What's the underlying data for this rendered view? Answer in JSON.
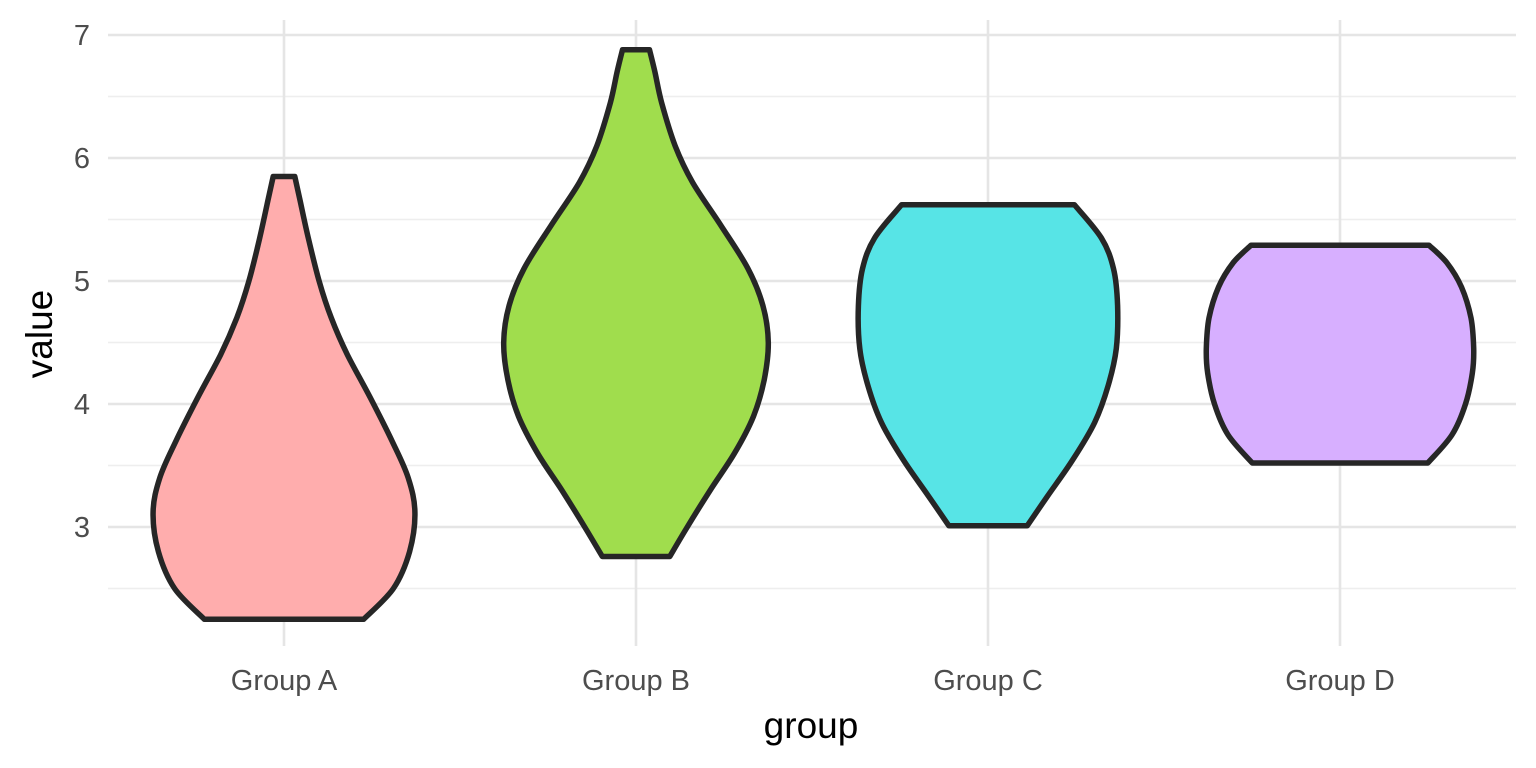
{
  "chart_data": {
    "type": "violin",
    "xlabel": "group",
    "ylabel": "value",
    "categories": [
      "Group A",
      "Group B",
      "Group C",
      "Group D"
    ],
    "yticks": [
      3,
      4,
      5,
      6,
      7
    ],
    "ylim": [
      2.05,
      7.15
    ],
    "grid": true,
    "legend": "none",
    "series": [
      {
        "category": "Group A",
        "color": "#ffadad",
        "min": 2.25,
        "max": 5.85,
        "density": [
          [
            2.25,
            0.59
          ],
          [
            2.5,
            0.81
          ],
          [
            2.8,
            0.93
          ],
          [
            3.12,
            0.97
          ],
          [
            3.4,
            0.92
          ],
          [
            3.7,
            0.8
          ],
          [
            4.05,
            0.64
          ],
          [
            4.4,
            0.47
          ],
          [
            4.7,
            0.35
          ],
          [
            5.0,
            0.26
          ],
          [
            5.35,
            0.18
          ],
          [
            5.65,
            0.12
          ],
          [
            5.85,
            0.08
          ]
        ]
      },
      {
        "category": "Group B",
        "color": "#a0dd4d",
        "min": 2.76,
        "max": 6.88,
        "density": [
          [
            2.76,
            0.25
          ],
          [
            3.0,
            0.38
          ],
          [
            3.3,
            0.55
          ],
          [
            3.6,
            0.73
          ],
          [
            3.9,
            0.87
          ],
          [
            4.2,
            0.95
          ],
          [
            4.5,
            0.98
          ],
          [
            4.8,
            0.94
          ],
          [
            5.1,
            0.83
          ],
          [
            5.45,
            0.63
          ],
          [
            5.8,
            0.42
          ],
          [
            6.1,
            0.29
          ],
          [
            6.45,
            0.19
          ],
          [
            6.7,
            0.14
          ],
          [
            6.88,
            0.1
          ]
        ]
      },
      {
        "category": "Group C",
        "color": "#57e4e6",
        "min": 3.01,
        "max": 5.62,
        "density": [
          [
            3.01,
            0.29
          ],
          [
            3.25,
            0.44
          ],
          [
            3.55,
            0.63
          ],
          [
            3.85,
            0.79
          ],
          [
            4.15,
            0.89
          ],
          [
            4.45,
            0.95
          ],
          [
            4.8,
            0.96
          ],
          [
            5.1,
            0.93
          ],
          [
            5.35,
            0.84
          ],
          [
            5.62,
            0.64
          ]
        ]
      },
      {
        "category": "Group D",
        "color": "#d7afff",
        "min": 3.52,
        "max": 5.29,
        "density": [
          [
            3.52,
            0.65
          ],
          [
            3.75,
            0.83
          ],
          [
            4.0,
            0.93
          ],
          [
            4.25,
            0.98
          ],
          [
            4.45,
            0.99
          ],
          [
            4.7,
            0.97
          ],
          [
            4.95,
            0.9
          ],
          [
            5.15,
            0.79
          ],
          [
            5.29,
            0.66
          ]
        ]
      }
    ]
  }
}
